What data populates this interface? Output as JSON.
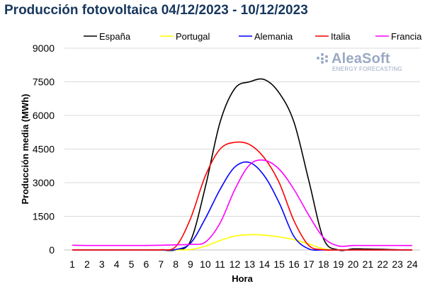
{
  "chart_data": {
    "type": "line",
    "title": "Producción fotovoltaica 04/12/2023 - 10/12/2023",
    "xlabel": "Hora",
    "ylabel": "Producción media (MWh)",
    "ylim": [
      0,
      9000
    ],
    "yticks": [
      0,
      1500,
      3000,
      4500,
      6000,
      7500,
      9000
    ],
    "grid": "horizontal",
    "legend_position": "top",
    "x": [
      1,
      2,
      3,
      4,
      5,
      6,
      7,
      8,
      9,
      10,
      11,
      12,
      13,
      14,
      15,
      16,
      17,
      18,
      19,
      20,
      21,
      22,
      23,
      24
    ],
    "series": [
      {
        "name": "España",
        "color": "#000000",
        "values": [
          0,
          0,
          0,
          0,
          0,
          0,
          0,
          5,
          400,
          2800,
          5700,
          7200,
          7500,
          7600,
          7000,
          5700,
          3100,
          500,
          0,
          50,
          40,
          30,
          10,
          0
        ]
      },
      {
        "name": "Portugal",
        "color": "#ffff00",
        "values": [
          0,
          0,
          0,
          0,
          0,
          0,
          0,
          0,
          20,
          170,
          420,
          620,
          680,
          660,
          580,
          460,
          270,
          50,
          0,
          0,
          0,
          0,
          0,
          0
        ]
      },
      {
        "name": "Alemania",
        "color": "#0000ff",
        "values": [
          0,
          0,
          0,
          0,
          0,
          0,
          0,
          20,
          300,
          1400,
          2700,
          3700,
          3900,
          3300,
          2100,
          600,
          50,
          0,
          0,
          0,
          0,
          0,
          0,
          0
        ]
      },
      {
        "name": "Italia",
        "color": "#ff0000",
        "values": [
          0,
          0,
          0,
          0,
          0,
          0,
          10,
          150,
          1400,
          3300,
          4500,
          4800,
          4700,
          4100,
          3000,
          1300,
          200,
          10,
          0,
          0,
          0,
          0,
          0,
          0
        ]
      },
      {
        "name": "Francia",
        "color": "#ff00ff",
        "values": [
          210,
          200,
          200,
          200,
          200,
          200,
          210,
          230,
          250,
          350,
          1200,
          2700,
          3800,
          4000,
          3600,
          2700,
          1550,
          550,
          180,
          200,
          200,
          200,
          200,
          200
        ]
      }
    ]
  },
  "logo": {
    "main": "AleaSoft",
    "sub": "ENERGY FORECASTING"
  }
}
